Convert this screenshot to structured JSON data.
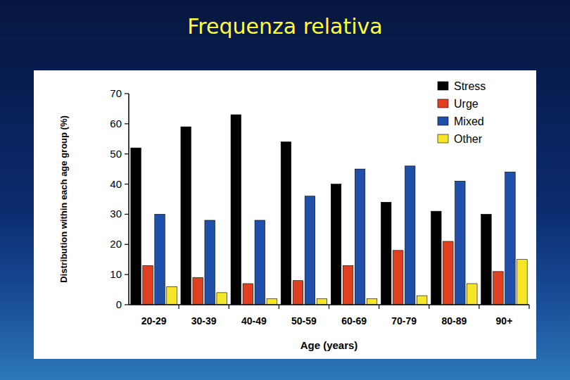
{
  "chart_data": {
    "type": "bar",
    "title": "Frequenza relativa",
    "categories": [
      "20-29",
      "30-39",
      "40-49",
      "50-59",
      "60-69",
      "70-79",
      "80-89",
      "90+"
    ],
    "series": [
      {
        "name": "Stress",
        "color": "#000000",
        "values": [
          52,
          59,
          63,
          54,
          40,
          34,
          31,
          30
        ]
      },
      {
        "name": "Urge",
        "color": "#e0401f",
        "values": [
          13,
          9,
          7,
          8,
          13,
          18,
          21,
          11
        ]
      },
      {
        "name": "Mixed",
        "color": "#1f4fa8",
        "values": [
          30,
          28,
          28,
          36,
          45,
          46,
          41,
          44
        ]
      },
      {
        "name": "Other",
        "color": "#f5e62a",
        "values": [
          6,
          4,
          2,
          2,
          2,
          3,
          7,
          15
        ]
      }
    ],
    "x_label": "Age (years)",
    "y_label": "Distribution within each age group (%)",
    "ylim": [
      0,
      70
    ],
    "yticks": [
      0,
      10,
      20,
      30,
      40,
      50,
      60,
      70
    ],
    "grid": false,
    "legend": "top-right"
  }
}
